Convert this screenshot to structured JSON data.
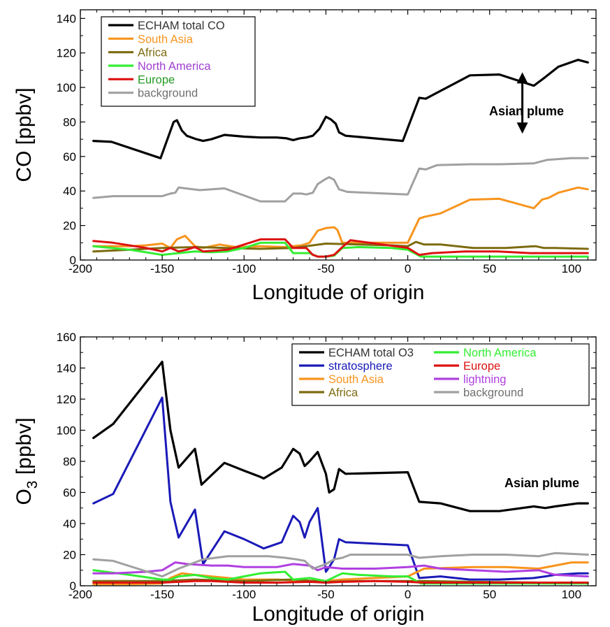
{
  "chart_data": [
    {
      "type": "line",
      "xlabel": "Longitude of origin",
      "ylabel": "CO [ppbv]",
      "xlim": [
        -200,
        115
      ],
      "ylim": [
        0,
        145
      ],
      "xticks": [
        -200,
        -150,
        -100,
        -50,
        0,
        50,
        100
      ],
      "yticks": [
        0,
        20,
        40,
        60,
        80,
        100,
        120,
        140
      ],
      "grid": false,
      "legend": {
        "placement": "top-left",
        "columns": 1,
        "boxed": true
      },
      "annotations": [
        {
          "text": "Asian plume",
          "x": 45,
          "y": 80,
          "arrow": {
            "x": 70,
            "y_from": 108,
            "y_to": 74,
            "double": true
          }
        }
      ],
      "series": [
        {
          "name": "ECHAM total CO",
          "color": "#000000",
          "text_color": "#333333",
          "x": [
            -192,
            -181,
            -151,
            -143,
            -141,
            -138,
            -135,
            -129,
            -125,
            -120,
            -112,
            -100,
            -90,
            -80,
            -74,
            -70,
            -66,
            -62,
            -58,
            -54,
            -50,
            -47,
            -44,
            -42,
            -38,
            -3,
            7,
            11,
            38,
            56,
            77,
            84,
            92,
            104,
            110
          ],
          "y": [
            69,
            68.5,
            59,
            80,
            81,
            75,
            72,
            70,
            69,
            70,
            72.5,
            71.5,
            71,
            71,
            70.5,
            69.5,
            70.5,
            71,
            72,
            76,
            83,
            81.5,
            79,
            74,
            72,
            69,
            94,
            93.5,
            107,
            107.5,
            101,
            106,
            112,
            116,
            114.5
          ]
        },
        {
          "name": "South Asia",
          "color": "#f7941d",
          "text_color": "#f7941d",
          "x": [
            -192,
            -170,
            -160,
            -150,
            -145,
            -141,
            -136,
            -130,
            -125,
            -115,
            -105,
            -90,
            -75,
            -65,
            -60,
            -55,
            -50,
            -45,
            -43,
            -40,
            0,
            7,
            10,
            20,
            38,
            56,
            77,
            82,
            86,
            92,
            104,
            110
          ],
          "y": [
            8,
            8,
            8.5,
            9.5,
            7,
            12,
            14,
            8,
            7,
            9,
            7.5,
            8,
            7.5,
            8.5,
            10,
            17,
            18.5,
            19,
            17.5,
            10,
            10,
            24,
            25,
            27,
            35,
            35.5,
            30,
            35,
            36,
            39,
            42,
            41
          ]
        },
        {
          "name": "Africa",
          "color": "#7d6b0f",
          "text_color": "#7d6b0f",
          "x": [
            -192,
            -170,
            -150,
            -130,
            -110,
            -90,
            -70,
            -50,
            -30,
            -10,
            0,
            5,
            10,
            20,
            40,
            60,
            78,
            83,
            90,
            110
          ],
          "y": [
            5,
            6,
            7,
            7.5,
            7,
            6.5,
            7,
            9.5,
            9,
            8.5,
            8,
            10.5,
            9,
            9,
            7,
            7,
            8,
            7,
            7,
            6.5
          ]
        },
        {
          "name": "North America",
          "color": "#33ee33",
          "text_color": "#a040d0",
          "x": [
            -192,
            -170,
            -160,
            -150,
            -140,
            -130,
            -120,
            -110,
            -100,
            -90,
            -80,
            -75,
            -70,
            -60,
            -55,
            -50,
            -45,
            -40,
            -30,
            -10,
            0,
            8,
            20,
            40,
            60,
            80,
            110
          ],
          "y": [
            8,
            6,
            4.5,
            3,
            4,
            5,
            4.5,
            5,
            7,
            10,
            10,
            10,
            4,
            4,
            2,
            2,
            2.5,
            7,
            7.5,
            7,
            6,
            2,
            2,
            2,
            2,
            2,
            2
          ]
        },
        {
          "name": "Europe",
          "color": "#dd1111",
          "text_color": "#229922",
          "x": [
            -192,
            -180,
            -160,
            -150,
            -145,
            -140,
            -135,
            -130,
            -125,
            -110,
            -100,
            -90,
            -75,
            -70,
            -62,
            -58,
            -55,
            -50,
            -45,
            -40,
            -35,
            0,
            7,
            15,
            35,
            55,
            75,
            85,
            110
          ],
          "y": [
            11,
            10,
            7,
            5,
            7,
            5,
            6,
            7.5,
            5,
            6,
            9,
            12,
            12,
            7,
            7,
            3,
            2,
            2,
            3,
            7.5,
            11.5,
            7,
            3,
            4,
            5,
            5,
            4,
            4,
            4
          ]
        },
        {
          "name": "background",
          "color": "#a0a0a0",
          "text_color": "#707070",
          "x": [
            -192,
            -180,
            -150,
            -145,
            -142,
            -140,
            -127,
            -112,
            -90,
            -75,
            -70,
            -65,
            -62,
            -58,
            -55,
            -51,
            -48,
            -45,
            -42,
            -37,
            0,
            7,
            11,
            18,
            38,
            56,
            77,
            85,
            100,
            110
          ],
          "y": [
            36,
            37,
            37,
            38.5,
            39,
            42,
            40.5,
            41.5,
            34,
            34,
            38.5,
            38.5,
            38,
            39,
            44,
            46.5,
            48,
            46.5,
            41,
            39.5,
            38,
            53,
            52.5,
            55,
            55.5,
            55.5,
            56,
            58,
            59,
            59
          ]
        }
      ]
    },
    {
      "type": "line",
      "xlabel": "Longitude of origin",
      "ylabel_main": "O",
      "ylabel_sub": "3",
      "ylabel_rest": " [ppbv]",
      "xlim": [
        -200,
        115
      ],
      "ylim": [
        0,
        160
      ],
      "xticks": [
        -200,
        -150,
        -100,
        -50,
        0,
        50,
        100
      ],
      "yticks": [
        0,
        20,
        40,
        60,
        80,
        100,
        120,
        140,
        160
      ],
      "grid": false,
      "legend": {
        "placement": "top-right",
        "columns": 2,
        "boxed": true
      },
      "annotations": [
        {
          "text": "Asian plume",
          "x": 50,
          "y": 60
        }
      ],
      "series": [
        {
          "name": "ECHAM total O3",
          "color": "#000000",
          "text_color": "#333333",
          "x": [
            -192,
            -180,
            -150,
            -145,
            -140,
            -130,
            -126,
            -112,
            -100,
            -90,
            -88,
            -77,
            -70,
            -66,
            -63,
            -60,
            -55,
            -50,
            -48,
            -45,
            -42,
            -38,
            0,
            7,
            20,
            38,
            56,
            77,
            84,
            90,
            104,
            110
          ],
          "y": [
            95,
            104,
            144,
            100,
            76,
            88,
            65,
            79,
            74,
            70,
            69,
            76,
            88,
            85,
            77,
            80,
            86,
            72,
            60,
            62,
            75,
            72,
            73,
            54,
            53,
            48,
            48,
            51,
            50,
            51,
            53,
            53
          ]
        },
        {
          "name": "stratosphere",
          "color": "#1a1ab8",
          "text_color": "#1a1ab8",
          "x": [
            -192,
            -180,
            -150,
            -145,
            -140,
            -130,
            -125,
            -112,
            -100,
            -90,
            -88,
            -77,
            -70,
            -66,
            -63,
            -60,
            -55,
            -50,
            -48,
            -45,
            -42,
            -38,
            0,
            7,
            20,
            38,
            56,
            77,
            84,
            90,
            104,
            110
          ],
          "y": [
            53,
            59,
            121,
            54,
            31,
            49,
            14,
            35,
            30,
            25,
            24,
            28,
            45,
            41,
            31,
            41,
            50,
            9,
            12,
            17,
            30,
            28,
            26,
            5,
            6,
            4,
            4,
            5,
            6,
            7,
            8,
            8
          ]
        },
        {
          "name": "South Asia",
          "color": "#f7941d",
          "text_color": "#f7941d",
          "x": [
            -192,
            -170,
            -150,
            -145,
            -138,
            -130,
            -120,
            -100,
            -80,
            -60,
            -50,
            -40,
            -20,
            0,
            10,
            40,
            60,
            80,
            90,
            100,
            110
          ],
          "y": [
            1,
            1,
            1.5,
            5,
            8,
            7,
            6,
            4,
            4,
            3,
            3,
            4,
            5,
            6,
            11,
            12,
            12,
            11,
            13,
            15,
            15
          ]
        },
        {
          "name": "Africa",
          "color": "#7d6b0f",
          "text_color": "#7d6b0f",
          "x": [
            -192,
            -150,
            -130,
            -100,
            -70,
            -50,
            -30,
            0,
            10,
            40,
            80,
            110
          ],
          "y": [
            3,
            3,
            4,
            3,
            4,
            2.5,
            3,
            3,
            3,
            2.5,
            2,
            2
          ]
        },
        {
          "name": "North America",
          "color": "#33ee33",
          "text_color": "#33ee33",
          "x": [
            -192,
            -170,
            -150,
            -145,
            -140,
            -130,
            -120,
            -110,
            -100,
            -90,
            -75,
            -70,
            -60,
            -50,
            -40,
            -30,
            -10,
            0,
            8,
            20,
            40,
            60,
            80,
            110
          ],
          "y": [
            10,
            7,
            4,
            4,
            6,
            7,
            5,
            4,
            6,
            8,
            9,
            4,
            5,
            3,
            8,
            7,
            6,
            6,
            1.5,
            1.5,
            1.5,
            1.5,
            1.5,
            1.5
          ]
        },
        {
          "name": "Europe",
          "color": "#dd1111",
          "text_color": "#dd1111",
          "x": [
            -192,
            -170,
            -150,
            -140,
            -130,
            -120,
            -100,
            -80,
            -60,
            -50,
            -40,
            -20,
            0,
            10,
            30,
            60,
            80,
            110
          ],
          "y": [
            2,
            2,
            2,
            2.5,
            3,
            3,
            2,
            2,
            2.5,
            2,
            2.5,
            3,
            2.5,
            2,
            2,
            2,
            2,
            2
          ]
        },
        {
          "name": "lightning",
          "color": "#b040e0",
          "text_color": "#b040e0",
          "x": [
            -192,
            -180,
            -160,
            -150,
            -142,
            -135,
            -120,
            -110,
            -100,
            -80,
            -70,
            -60,
            -55,
            -50,
            -40,
            -20,
            0,
            10,
            20,
            40,
            60,
            80,
            90,
            110
          ],
          "y": [
            8,
            8,
            9,
            10,
            15,
            14,
            13,
            13,
            12,
            12,
            14,
            13,
            10,
            12,
            11,
            11,
            12,
            13,
            11,
            10,
            9,
            10,
            7,
            6
          ]
        },
        {
          "name": "background",
          "color": "#a0a0a0",
          "text_color": "#707070",
          "x": [
            -192,
            -180,
            -165,
            -150,
            -140,
            -125,
            -110,
            -95,
            -85,
            -75,
            -68,
            -63,
            -58,
            -55,
            -50,
            -45,
            -40,
            -35,
            0,
            7,
            20,
            40,
            60,
            80,
            90,
            110
          ],
          "y": [
            17,
            16,
            11,
            6,
            11,
            17,
            19,
            19,
            19,
            18,
            17,
            16,
            11,
            12,
            14,
            17,
            18,
            20,
            20,
            18,
            19,
            20,
            20,
            19,
            21,
            20
          ]
        }
      ]
    }
  ]
}
